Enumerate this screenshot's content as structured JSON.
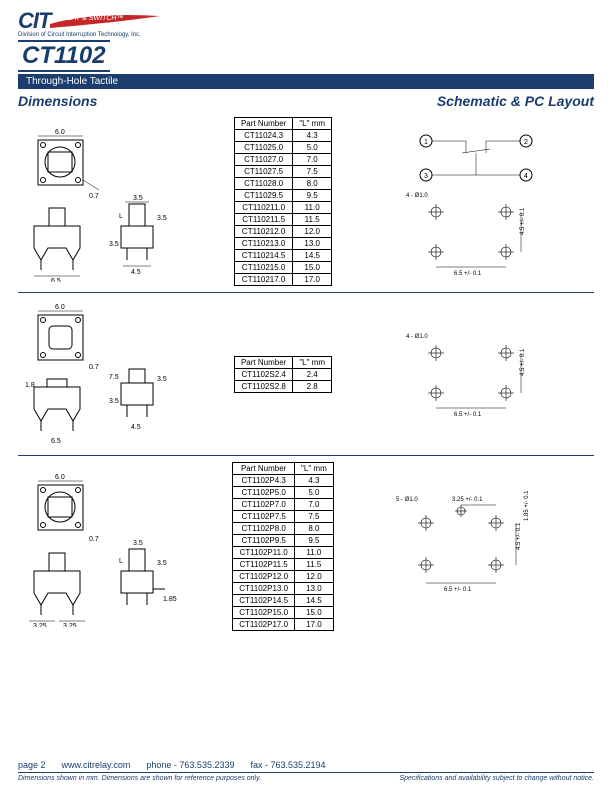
{
  "header": {
    "logo_text": "CIT",
    "logo_tagline": "RELAY & SWITCH™",
    "logo_sub": "Division of Circuit Interruption Technology, Inc.",
    "part_number": "CT1102",
    "banner": "Through-Hole Tactile"
  },
  "titles": {
    "left": "Dimensions",
    "right": "Schematic & PC Layout"
  },
  "tables": [
    {
      "headers": [
        "Part Number",
        "\"L\" mm"
      ],
      "rows": [
        [
          "CT11024.3",
          "4.3"
        ],
        [
          "CT11025.0",
          "5.0"
        ],
        [
          "CT11027.0",
          "7.0"
        ],
        [
          "CT11027.5",
          "7.5"
        ],
        [
          "CT11028.0",
          "8.0"
        ],
        [
          "CT11029.5",
          "9.5"
        ],
        [
          "CT110211.0",
          "11.0"
        ],
        [
          "CT110211.5",
          "11.5"
        ],
        [
          "CT110212.0",
          "12.0"
        ],
        [
          "CT110213.0",
          "13.0"
        ],
        [
          "CT110214.5",
          "14.5"
        ],
        [
          "CT110215.0",
          "15.0"
        ],
        [
          "CT110217.0",
          "17.0"
        ]
      ]
    },
    {
      "headers": [
        "Part Number",
        "\"L\" mm"
      ],
      "rows": [
        [
          "CT1102S2.4",
          "2.4"
        ],
        [
          "CT1102S2.8",
          "2.8"
        ]
      ]
    },
    {
      "headers": [
        "Part Number",
        "\"L\" mm"
      ],
      "rows": [
        [
          "CT1102P4.3",
          "4.3"
        ],
        [
          "CT1102P5.0",
          "5.0"
        ],
        [
          "CT1102P7.0",
          "7.0"
        ],
        [
          "CT1102P7.5",
          "7.5"
        ],
        [
          "CT1102P8.0",
          "8.0"
        ],
        [
          "CT1102P9.5",
          "9.5"
        ],
        [
          "CT1102P11.0",
          "11.0"
        ],
        [
          "CT1102P11.5",
          "11.5"
        ],
        [
          "CT1102P12.0",
          "12.0"
        ],
        [
          "CT1102P13.0",
          "13.0"
        ],
        [
          "CT1102P14.5",
          "14.5"
        ],
        [
          "CT1102P15.0",
          "15.0"
        ],
        [
          "CT1102P17.0",
          "17.0"
        ]
      ]
    }
  ],
  "dimensions": {
    "row1": {
      "top_w": "6.0",
      "corner": "0.7",
      "cap": "3.5",
      "L": "L",
      "side_h": "3.5",
      "bot_h": "3.5",
      "bot_w": "6.5",
      "pin": "4.5"
    },
    "row2": {
      "top_w": "6.0",
      "corner": "0.7",
      "edge": "1.8",
      "cap_h": "7.5",
      "side_h": "3.5",
      "bot_h": "3.5",
      "bot_w": "6.5",
      "pin": "4.5"
    },
    "row3": {
      "top_w": "6.0",
      "corner": "0.7",
      "cap": "3.5",
      "L": "L",
      "side_h": "3.5",
      "lp": "3.25",
      "rp": "3.25",
      "ext": "1.85"
    }
  },
  "layouts": {
    "schematic": {
      "p1": "1",
      "p2": "2",
      "p3": "3",
      "p4": "4"
    },
    "pcb1": {
      "hole": "4 - Ø1.0",
      "w": "6.5 +/- 0.1",
      "h": "4.5 +/- 0.1"
    },
    "pcb2": {
      "hole": "4 - Ø1.0",
      "w": "6.5 +/- 0.1",
      "h": "4.5 +/- 0.1"
    },
    "pcb3": {
      "hole": "5 - Ø1.0",
      "off": "3.25 +/- 0.1",
      "w": "6.5 +/- 0.1",
      "h1": "1.85 +/- 0.1",
      "h2": "4.5 +/- 0.1"
    }
  },
  "footer": {
    "page": "page 2",
    "url": "www.citrelay.com",
    "phone": "phone - 763.535.2339",
    "fax": "fax - 763.535.2194",
    "note_left": "Dimensions shown in mm. Dimensions are shown for reference purposes only.",
    "note_right": "Specifications and availability subject to change without notice."
  },
  "colors": {
    "brand": "#1a3d6d",
    "swoosh": "#c62828"
  }
}
